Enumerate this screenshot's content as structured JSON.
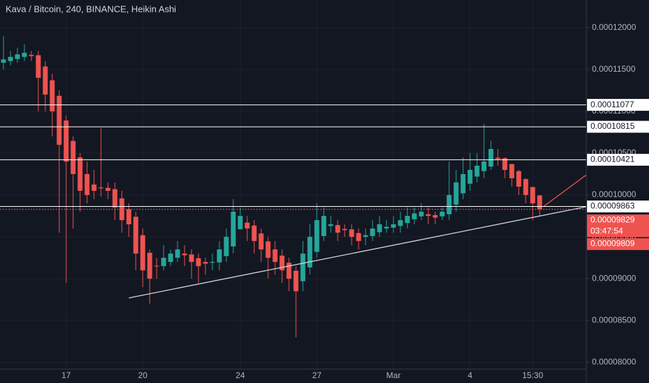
{
  "chart_data": {
    "type": "candlestick",
    "title": "Kava / Bitcoin, 240, BINANCE, Heikin Ashi",
    "categories": [
      null,
      null,
      null,
      null,
      null,
      null,
      null,
      null,
      null,
      "17",
      null,
      null,
      null,
      null,
      null,
      null,
      null,
      null,
      null,
      null,
      "20",
      null,
      null,
      null,
      null,
      null,
      null,
      null,
      null,
      null,
      null,
      null,
      null,
      null,
      "24",
      null,
      null,
      null,
      null,
      null,
      null,
      null,
      null,
      null,
      null,
      "27",
      null,
      null,
      null,
      null,
      null,
      null,
      null,
      null,
      null,
      null,
      "Mar",
      null,
      null,
      null,
      null,
      null,
      null,
      null,
      null,
      null,
      null,
      "4",
      null,
      null,
      null,
      null,
      null,
      null,
      null,
      null,
      "15:30",
      null
    ],
    "open": [
      0.0001158,
      0.000116,
      0.00011625,
      0.0001165,
      0.00011675,
      0.0001167,
      0.00011535,
      0.0001137,
      0.00011185,
      0.0001089,
      0.00010645,
      0.0001045,
      0.0001025,
      0.00010125,
      0.0001009,
      0.00010085,
      0.0001007,
      9.96e-05,
      9.83e-05,
      9.74e-05,
      9.52e-05,
      9.31e-05,
      9.155e-05,
      9.15e-05,
      9.2e-05,
      9.25e-05,
      9.3e-05,
      9.29e-05,
      9.245e-05,
      9.2e-05,
      9.19e-05,
      9.195e-05,
      9.27e-05,
      9.385e-05,
      9.59e-05,
      9.67e-05,
      9.635e-05,
      9.54e-05,
      9.445e-05,
      9.35e-05,
      9.275e-05,
      9.19e-05,
      9.095e-05,
      8.97e-05,
      9.135e-05,
      9.32e-05,
      9.51e-05,
      9.63e-05,
      9.64e-05,
      9.595e-05,
      9.59e-05,
      9.545e-05,
      9.5e-05,
      9.51e-05,
      9.555e-05,
      9.6e-05,
      9.61e-05,
      9.63e-05,
      9.665e-05,
      9.71e-05,
      9.745e-05,
      9.77e-05,
      9.76e-05,
      9.745e-05,
      9.77e-05,
      9.885e-05,
      0.0001002,
      0.00010135,
      0.0001022,
      0.00010285,
      0.0001034,
      0.00010445,
      0.0001044,
      0.0001037,
      0.00010285,
      0.0001019,
      0.00010095,
      9.995e-05
    ],
    "high": [
      0.000119,
      0.0001172,
      0.0001176,
      0.000118,
      0.0001172,
      0.0001172,
      0.000116,
      0.0001145,
      0.0001125,
      0.0001095,
      0.000107,
      0.000105,
      0.000104,
      0.000103,
      0.000108,
      0.0001015,
      0.0001015,
      0.0001005,
      9.9e-05,
      9.8e-05,
      9.6e-05,
      9.35e-05,
      9.25e-05,
      9.4e-05,
      9.35e-05,
      9.45e-05,
      9.4e-05,
      9.35e-05,
      9.3e-05,
      9.25e-05,
      9.3e-05,
      9.45e-05,
      9.6e-05,
      9.95e-05,
      9.85e-05,
      9.75e-05,
      9.7e-05,
      9.6e-05,
      9.5e-05,
      9.45e-05,
      9.35e-05,
      9.25e-05,
      9.15e-05,
      9.45e-05,
      9.65e-05,
      9.9e-05,
      9.85e-05,
      9.75e-05,
      9.7e-05,
      9.65e-05,
      9.65e-05,
      9.6e-05,
      9.6e-05,
      9.7e-05,
      9.75e-05,
      9.7e-05,
      9.75e-05,
      9.8e-05,
      9.85e-05,
      9.85e-05,
      9.9e-05,
      9.85e-05,
      9.8e-05,
      9.85e-05,
      0.000104,
      0.000103,
      0.0001045,
      0.000105,
      0.000105,
      0.0001085,
      0.0001065,
      0.0001055,
      0.0001045,
      0.0001035,
      0.000103,
      0.000102,
      0.000101,
      0.0001
    ],
    "low": [
      0.000115,
      0.0001155,
      0.0001158,
      0.000116,
      0.000116,
      0.00011,
      0.00011,
      0.000107,
      9.55e-05,
      8.95e-05,
      9.6e-05,
      9.8e-05,
      9.9e-05,
      9.95e-05,
      9.98e-05,
      9.95e-05,
      9.7e-05,
      9.55e-05,
      9.5e-05,
      9.1e-05,
      8.9e-05,
      8.7e-05,
      9e-05,
      9.1e-05,
      9.15e-05,
      9.2e-05,
      9.15e-05,
      9e-05,
      8.95e-05,
      9.05e-05,
      9.1e-05,
      9.1e-05,
      9.2e-05,
      9.3e-05,
      9.6e-05,
      9.45e-05,
      9.3e-05,
      9.2e-05,
      9e-05,
      9.05e-05,
      8.95e-05,
      8.85e-05,
      8.3e-05,
      8.85e-05,
      9.05e-05,
      9.25e-05,
      9.45e-05,
      9.55e-05,
      9.45e-05,
      9.5e-05,
      9.4e-05,
      9.35e-05,
      9.4e-05,
      9.45e-05,
      9.5e-05,
      9.55e-05,
      9.55e-05,
      9.55e-05,
      9.6e-05,
      9.65e-05,
      9.7e-05,
      9.65e-05,
      9.65e-05,
      9.7e-05,
      9.7e-05,
      9.8e-05,
      9.95e-05,
      0.0001005,
      0.0001015,
      0.000102,
      0.000103,
      0.0001035,
      0.000102,
      0.000101,
      0.0001,
      9.9e-05,
      9.7e-05,
      9.75e-05
    ],
    "close": [
      0.0001162,
      0.0001165,
      0.0001168,
      0.000117,
      0.0001166,
      0.000114,
      0.000112,
      0.00011,
      0.000106,
      0.000104,
      0.0001025,
      0.0001005,
      0.0001,
      0.0001005,
      0.0001008,
      0.0001005,
      9.85e-05,
      9.7e-05,
      9.65e-05,
      9.3e-05,
      9.1e-05,
      9e-05,
      9.15e-05,
      9.25e-05,
      9.3e-05,
      9.35e-05,
      9.28e-05,
      9.2e-05,
      9.15e-05,
      9.18e-05,
      9.2e-05,
      9.35e-05,
      9.5e-05,
      9.8e-05,
      9.75e-05,
      9.6e-05,
      9.45e-05,
      9.35e-05,
      9.25e-05,
      9.2e-05,
      9.1e-05,
      9e-05,
      8.85e-05,
      9.3e-05,
      9.5e-05,
      9.7e-05,
      9.75e-05,
      9.65e-05,
      9.55e-05,
      9.58e-05,
      9.5e-05,
      9.45e-05,
      9.52e-05,
      9.6e-05,
      9.65e-05,
      9.62e-05,
      9.65e-05,
      9.7e-05,
      9.75e-05,
      9.78e-05,
      9.8e-05,
      9.75e-05,
      9.73e-05,
      9.8e-05,
      0.0001,
      0.0001015,
      0.0001025,
      0.000103,
      0.0001035,
      0.000104,
      0.0001055,
      0.0001043,
      0.000103,
      0.000102,
      0.000101,
      0.0001,
      9.9e-05,
      9.83e-05
    ],
    "up_color": "#26a69a",
    "down_color": "#ef5350",
    "levels": [
      0.00011077,
      0.00010815,
      0.00010421,
      9.863e-05
    ],
    "last_price": 9.829e-05,
    "countdown": "03:47:54",
    "bid_price": 9.809e-05,
    "trendline": {
      "from": [
        18,
        8.77e-05
      ],
      "to": [
        84,
        9.86e-05
      ],
      "color": "#d1d4dc"
    },
    "ray": {
      "from": [
        77.5,
        9.86e-05
      ],
      "to": [
        84,
        0.0001024
      ],
      "color": "#ef5350"
    },
    "ylim": [
      7.92e-05,
      0.0001233
    ],
    "yticks": [
      {
        "value": 8e-05,
        "label": "0.00008000"
      },
      {
        "value": 8.5e-05,
        "label": "0.00008500"
      },
      {
        "value": 9e-05,
        "label": "0.00009000"
      },
      {
        "value": 9.5e-05,
        "label": "0.00009500"
      },
      {
        "value": 0.0001,
        "label": "0.00010000"
      },
      {
        "value": 0.000105,
        "label": "0.00010500"
      },
      {
        "value": 0.00011,
        "label": "0.00011000"
      },
      {
        "value": 0.000115,
        "label": "0.00011500"
      },
      {
        "value": 0.00012,
        "label": "0.00012000"
      }
    ],
    "grid": true
  }
}
